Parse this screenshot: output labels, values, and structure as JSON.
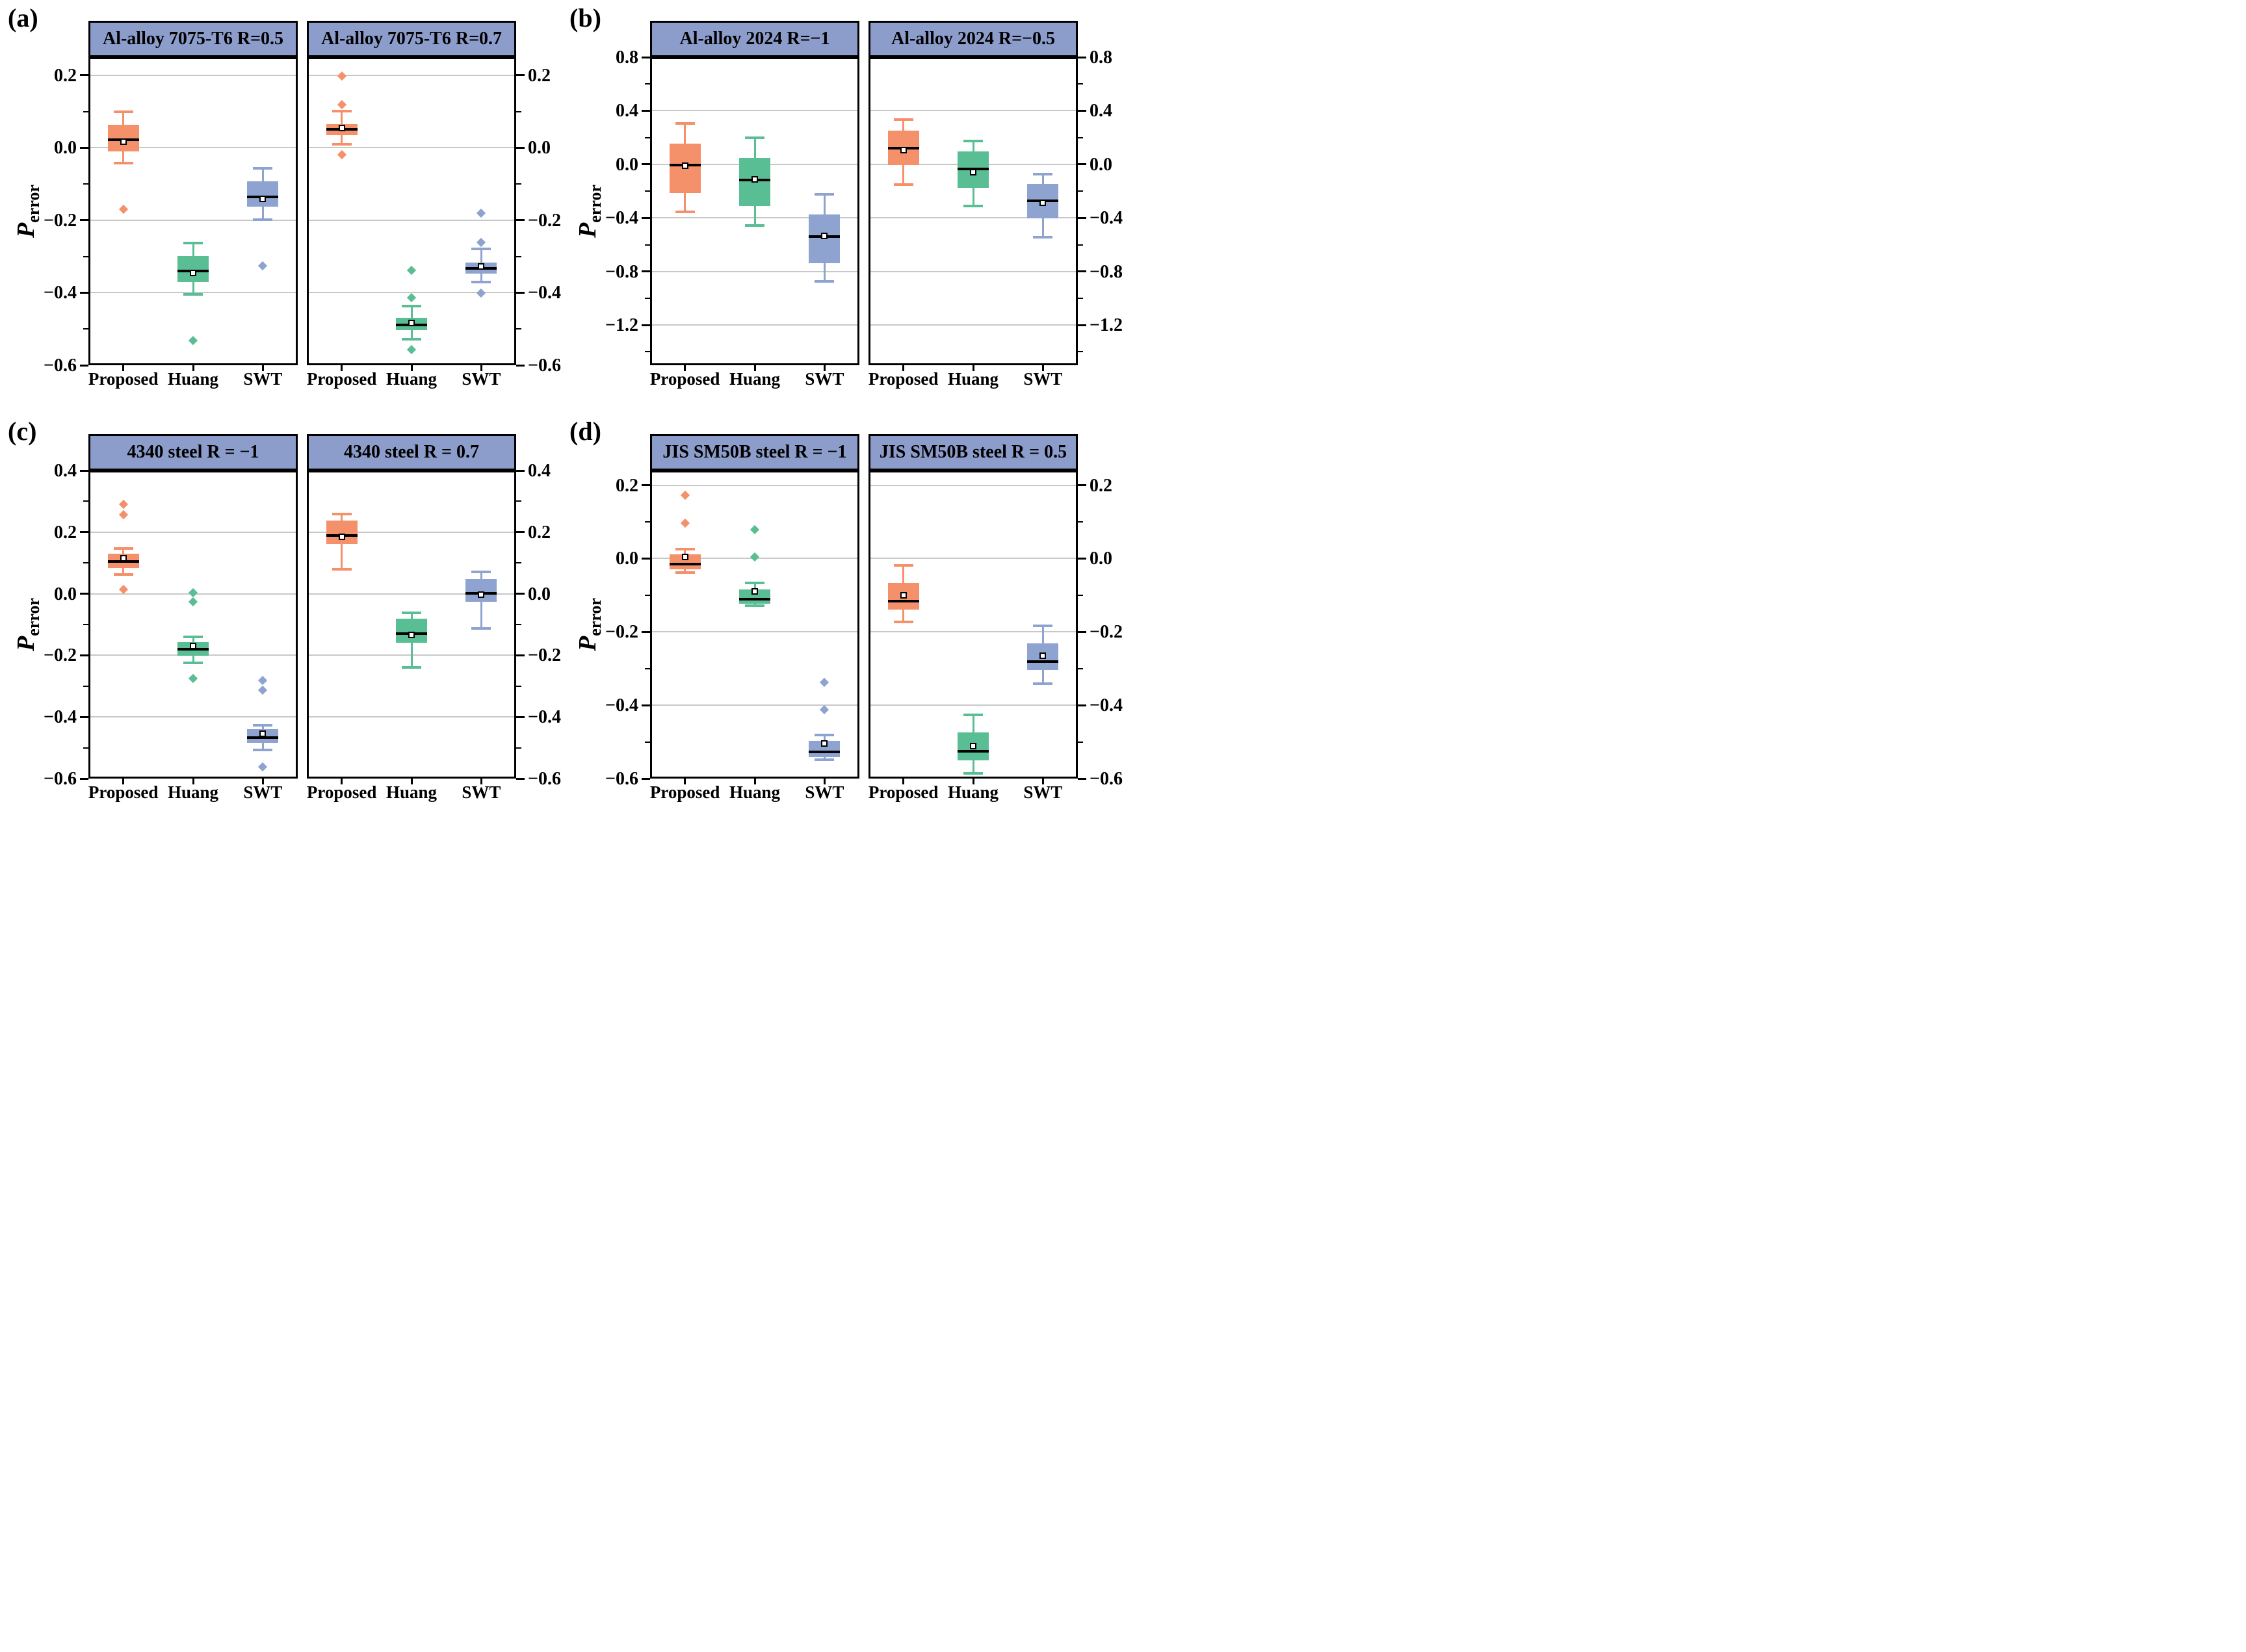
{
  "figure": {
    "ylabel": {
      "main": "P",
      "sub": "error"
    },
    "groups": [
      "Proposed",
      "Huang",
      "SWT"
    ],
    "colors": {
      "series": {
        "Proposed": "#F4906A",
        "Huang": "#59BE93",
        "SWT": "#8FA3D0"
      },
      "header_bg": "#8C9DCB",
      "grid": "#C8C8C8",
      "frame": "#000000",
      "median": "#000000",
      "background": "#FFFFFF"
    }
  },
  "chart_data": [
    {
      "type": "box",
      "tag": "(a)",
      "material": "Al-alloy 7075-T6",
      "ylim": [
        -0.6,
        0.25
      ],
      "yticks": [
        0.2,
        0.0,
        -0.2,
        -0.4,
        -0.6
      ],
      "ytick_labels": [
        "0.2",
        "0.0",
        "−0.2",
        "−0.4",
        "−0.6"
      ],
      "yticks_minor": [
        0.1,
        -0.1,
        -0.3,
        -0.5
      ],
      "subplots": [
        {
          "title": "Al-alloy 7075-T6 R=0.5",
          "series": [
            {
              "name": "Proposed",
              "whislo": -0.042,
              "q1": -0.01,
              "med": 0.022,
              "mean": 0.016,
              "q3": 0.063,
              "whishi": 0.1,
              "outliers": [
                -0.17
              ]
            },
            {
              "name": "Huang",
              "whislo": -0.405,
              "q1": -0.37,
              "med": -0.34,
              "mean": -0.345,
              "q3": -0.298,
              "whishi": -0.262,
              "outliers": [
                -0.532
              ]
            },
            {
              "name": "SWT",
              "whislo": -0.199,
              "q1": -0.163,
              "med": -0.136,
              "mean": -0.141,
              "q3": -0.093,
              "whishi": -0.057,
              "outliers": [
                -0.325
              ]
            }
          ]
        },
        {
          "title": "Al-alloy 7075-T6 R=0.7",
          "series": [
            {
              "name": "Proposed",
              "whislo": 0.009,
              "q1": 0.034,
              "med": 0.051,
              "mean": 0.054,
              "q3": 0.066,
              "whishi": 0.101,
              "outliers": [
                0.198,
                0.119,
                -0.019
              ]
            },
            {
              "name": "Huang",
              "whislo": -0.528,
              "q1": -0.503,
              "med": -0.488,
              "mean": -0.483,
              "q3": -0.469,
              "whishi": -0.436,
              "outliers": [
                -0.338,
                -0.414,
                -0.557
              ]
            },
            {
              "name": "SWT",
              "whislo": -0.371,
              "q1": -0.347,
              "med": -0.333,
              "mean": -0.327,
              "q3": -0.317,
              "whishi": -0.279,
              "outliers": [
                -0.181,
                -0.261,
                -0.401
              ]
            }
          ]
        }
      ]
    },
    {
      "type": "box",
      "tag": "(b)",
      "material": "Al-alloy 2024",
      "ylim": [
        -1.5,
        0.8
      ],
      "yticks": [
        0.8,
        0.4,
        0.0,
        -0.4,
        -0.8,
        -1.2
      ],
      "ytick_labels": [
        "0.8",
        "0.4",
        "0.0",
        "−0.4",
        "−0.8",
        "−1.2"
      ],
      "yticks_minor": [
        0.6,
        0.2,
        -0.2,
        -0.6,
        -1.0,
        -1.4
      ],
      "subplots": [
        {
          "title": "Al-alloy 2024 R=−1",
          "series": [
            {
              "name": "Proposed",
              "whislo": -0.354,
              "q1": -0.213,
              "med": -0.006,
              "mean": -0.012,
              "q3": 0.157,
              "whishi": 0.307,
              "outliers": []
            },
            {
              "name": "Huang",
              "whislo": -0.458,
              "q1": -0.311,
              "med": -0.117,
              "mean": -0.112,
              "q3": 0.048,
              "whishi": 0.196,
              "outliers": []
            },
            {
              "name": "SWT",
              "whislo": -0.873,
              "q1": -0.737,
              "med": -0.541,
              "mean": -0.533,
              "q3": -0.374,
              "whishi": -0.226,
              "outliers": []
            }
          ]
        },
        {
          "title": "Al-alloy 2024 R=−0.5",
          "series": [
            {
              "name": "Proposed",
              "whislo": -0.15,
              "q1": -0.005,
              "med": 0.123,
              "mean": 0.105,
              "q3": 0.252,
              "whishi": 0.332,
              "outliers": []
            },
            {
              "name": "Huang",
              "whislo": -0.311,
              "q1": -0.174,
              "med": -0.037,
              "mean": -0.06,
              "q3": 0.097,
              "whishi": 0.174,
              "outliers": []
            },
            {
              "name": "SWT",
              "whislo": -0.545,
              "q1": -0.405,
              "med": -0.272,
              "mean": -0.288,
              "q3": -0.148,
              "whishi": -0.072,
              "outliers": []
            }
          ]
        }
      ]
    },
    {
      "type": "box",
      "tag": "(c)",
      "material": "4340 steel",
      "ylim": [
        -0.6,
        0.4
      ],
      "yticks": [
        0.4,
        0.2,
        0.0,
        -0.2,
        -0.4,
        -0.6
      ],
      "ytick_labels": [
        "0.4",
        "0.2",
        "0.0",
        "−0.2",
        "−0.4",
        "−0.6"
      ],
      "yticks_minor": [
        0.3,
        0.1,
        -0.1,
        -0.3,
        -0.5
      ],
      "subplots": [
        {
          "title": "4340 steel R = −1",
          "series": [
            {
              "name": "Proposed",
              "whislo": 0.063,
              "q1": 0.083,
              "med": 0.104,
              "mean": 0.115,
              "q3": 0.131,
              "whishi": 0.146,
              "outliers": [
                0.29,
                0.257,
                0.013
              ]
            },
            {
              "name": "Huang",
              "whislo": -0.224,
              "q1": -0.201,
              "med": -0.18,
              "mean": -0.17,
              "q3": -0.157,
              "whishi": -0.141,
              "outliers": [
                0.004,
                -0.026,
                -0.276
              ]
            },
            {
              "name": "SWT",
              "whislo": -0.508,
              "q1": -0.483,
              "med": -0.467,
              "mean": -0.454,
              "q3": -0.44,
              "whishi": -0.427,
              "outliers": [
                -0.281,
                -0.313,
                -0.563
              ]
            }
          ]
        },
        {
          "title": "4340 steel R = 0.7",
          "series": [
            {
              "name": "Proposed",
              "whislo": 0.079,
              "q1": 0.162,
              "med": 0.189,
              "mean": 0.184,
              "q3": 0.238,
              "whishi": 0.258,
              "outliers": []
            },
            {
              "name": "Huang",
              "whislo": -0.24,
              "q1": -0.16,
              "med": -0.13,
              "mean": -0.134,
              "q3": -0.08,
              "whishi": -0.061,
              "outliers": []
            },
            {
              "name": "SWT",
              "whislo": -0.112,
              "q1": -0.026,
              "med": 0.001,
              "mean": -0.004,
              "q3": 0.048,
              "whishi": 0.071,
              "outliers": []
            }
          ]
        }
      ]
    },
    {
      "type": "box",
      "tag": "(d)",
      "material": "JIS SM50B steel",
      "ylim": [
        -0.6,
        0.24
      ],
      "yticks": [
        0.2,
        0.0,
        -0.2,
        -0.4,
        -0.6
      ],
      "ytick_labels": [
        "0.2",
        "0.0",
        "−0.2",
        "−0.4",
        "−0.6"
      ],
      "yticks_minor": [
        0.1,
        -0.1,
        -0.3,
        -0.5
      ],
      "subplots": [
        {
          "title": "JIS SM50B steel R = −1",
          "series": [
            {
              "name": "Proposed",
              "whislo": -0.039,
              "q1": -0.029,
              "med": -0.016,
              "mean": 0.005,
              "q3": 0.011,
              "whishi": 0.026,
              "outliers": [
                0.173,
                0.097
              ]
            },
            {
              "name": "Huang",
              "whislo": -0.129,
              "q1": -0.123,
              "med": -0.111,
              "mean": -0.09,
              "q3": -0.085,
              "whishi": -0.067,
              "outliers": [
                0.079,
                0.004
              ]
            },
            {
              "name": "SWT",
              "whislo": -0.548,
              "q1": -0.542,
              "med": -0.528,
              "mean": -0.505,
              "q3": -0.498,
              "whishi": -0.481,
              "outliers": [
                -0.338,
                -0.413
              ]
            }
          ]
        },
        {
          "title": "JIS SM50B steel R = 0.5",
          "series": [
            {
              "name": "Proposed",
              "whislo": -0.173,
              "q1": -0.139,
              "med": -0.116,
              "mean": -0.101,
              "q3": -0.066,
              "whishi": -0.019,
              "outliers": []
            },
            {
              "name": "Huang",
              "whislo": -0.585,
              "q1": -0.55,
              "med": -0.526,
              "mean": -0.511,
              "q3": -0.475,
              "whishi": -0.427,
              "outliers": []
            },
            {
              "name": "SWT",
              "whislo": -0.341,
              "q1": -0.304,
              "med": -0.281,
              "mean": -0.265,
              "q3": -0.232,
              "whishi": -0.183,
              "outliers": []
            }
          ]
        }
      ]
    }
  ]
}
